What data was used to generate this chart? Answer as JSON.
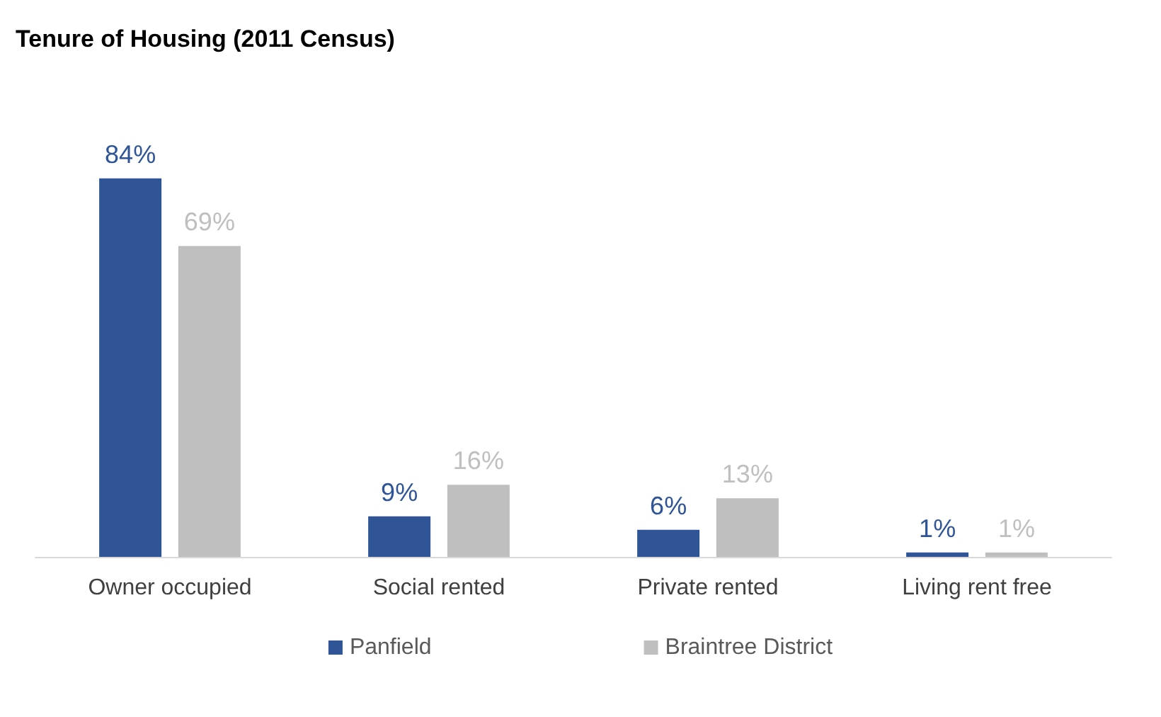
{
  "chart_data": {
    "type": "bar",
    "title": "Tenure of Housing (2011 Census)",
    "categories": [
      "Owner occupied",
      "Social rented",
      "Private rented",
      "Living rent free"
    ],
    "series": [
      {
        "name": "Panfield",
        "color": "#2f5597",
        "values": [
          84,
          9,
          6,
          1
        ],
        "value_labels": [
          "84%",
          "9%",
          "6%",
          "1%"
        ]
      },
      {
        "name": "Braintree District",
        "color": "#bfbfbf",
        "values": [
          69,
          16,
          13,
          1
        ],
        "value_labels": [
          "69%",
          "16%",
          "13%",
          "1%"
        ]
      }
    ],
    "legend": "bottom"
  }
}
